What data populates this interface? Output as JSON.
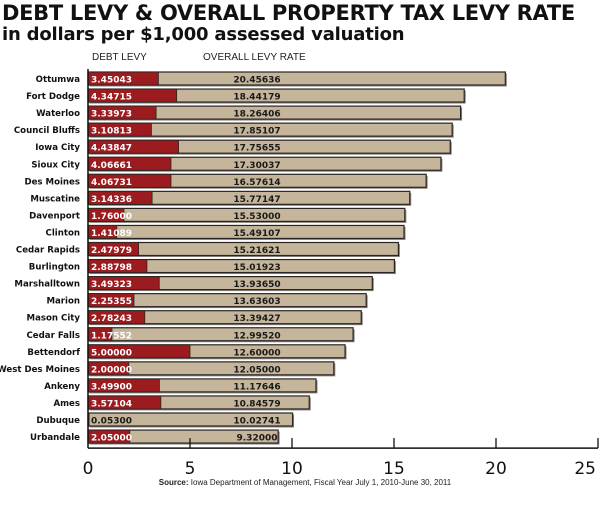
{
  "chart_data": {
    "type": "bar",
    "orientation": "horizontal",
    "title": "DEBT LEVY & OVERALL PROPERTY TAX LEVY RATE",
    "subtitle": "in dollars per $1,000 assessed valuation",
    "legend": {
      "debt_levy": "DEBT LEVY",
      "overall_levy_rate": "OVERALL LEVY RATE"
    },
    "categories": [
      "Ottumwa",
      "Fort Dodge",
      "Waterloo",
      "Council Bluffs",
      "Iowa City",
      "Sioux City",
      "Des Moines",
      "Muscatine",
      "Davenport",
      "Clinton",
      "Cedar Rapids",
      "Burlington",
      "Marshalltown",
      "Marion",
      "Mason City",
      "Cedar Falls",
      "Bettendorf",
      "West Des Moines",
      "Ankeny",
      "Ames",
      "Dubuque",
      "Urbandale"
    ],
    "series": [
      {
        "name": "Debt levy",
        "values": [
          3.45043,
          4.34715,
          3.33973,
          3.10813,
          4.43847,
          4.06661,
          4.06731,
          3.14336,
          1.76,
          1.41089,
          2.47979,
          2.88798,
          3.49323,
          2.25355,
          2.78243,
          1.17552,
          5.0,
          2.0,
          3.499,
          3.57104,
          0.053,
          2.05
        ],
        "labels": [
          "3.45043",
          "4.34715",
          "3.33973",
          "3.10813",
          "4.43847",
          "4.06661",
          "4.06731",
          "3.14336",
          "1.76000",
          "1.41089",
          "2.47979",
          "2.88798",
          "3.49323",
          "2.25355",
          "2.78243",
          "1.17552",
          "5.00000",
          "2.00000",
          "3.49900",
          "3.57104",
          "0.05300",
          "2.05000"
        ]
      },
      {
        "name": "Overall levy rate",
        "values": [
          20.45636,
          18.44179,
          18.26406,
          17.85107,
          17.75655,
          17.30037,
          16.57614,
          15.77147,
          15.53,
          15.49107,
          15.21621,
          15.01923,
          13.9365,
          13.63603,
          13.39427,
          12.9952,
          12.6,
          12.05,
          11.17646,
          10.84579,
          10.02741,
          9.32
        ],
        "labels": [
          "20.45636",
          "18.44179",
          "18.26406",
          "17.85107",
          "17.75655",
          "17.30037",
          "16.57614",
          "15.77147",
          "15.53000",
          "15.49107",
          "15.21621",
          "15.01923",
          "13.93650",
          "13.63603",
          "13.39427",
          "12.99520",
          "12.60000",
          "12.05000",
          "11.17646",
          "10.84579",
          "10.02741",
          "9.32000"
        ]
      }
    ],
    "xlim": [
      0,
      25
    ],
    "xticks": [
      "0",
      "5",
      "10",
      "15",
      "20",
      "25"
    ],
    "xtick_values": [
      0,
      5,
      10,
      15,
      20,
      25
    ],
    "xlabel": "",
    "ylabel": "",
    "grid": false,
    "colors": {
      "debt": "#9b1b1f",
      "overall": "#c4b59b",
      "border": "#2a2522",
      "debt_text": "#ffffff",
      "overall_text": "#1a1a1a"
    },
    "source_label": "Source:",
    "source_text": "Iowa Department of Management, Fiscal Year July 1, 2010-June 30, 2011"
  }
}
